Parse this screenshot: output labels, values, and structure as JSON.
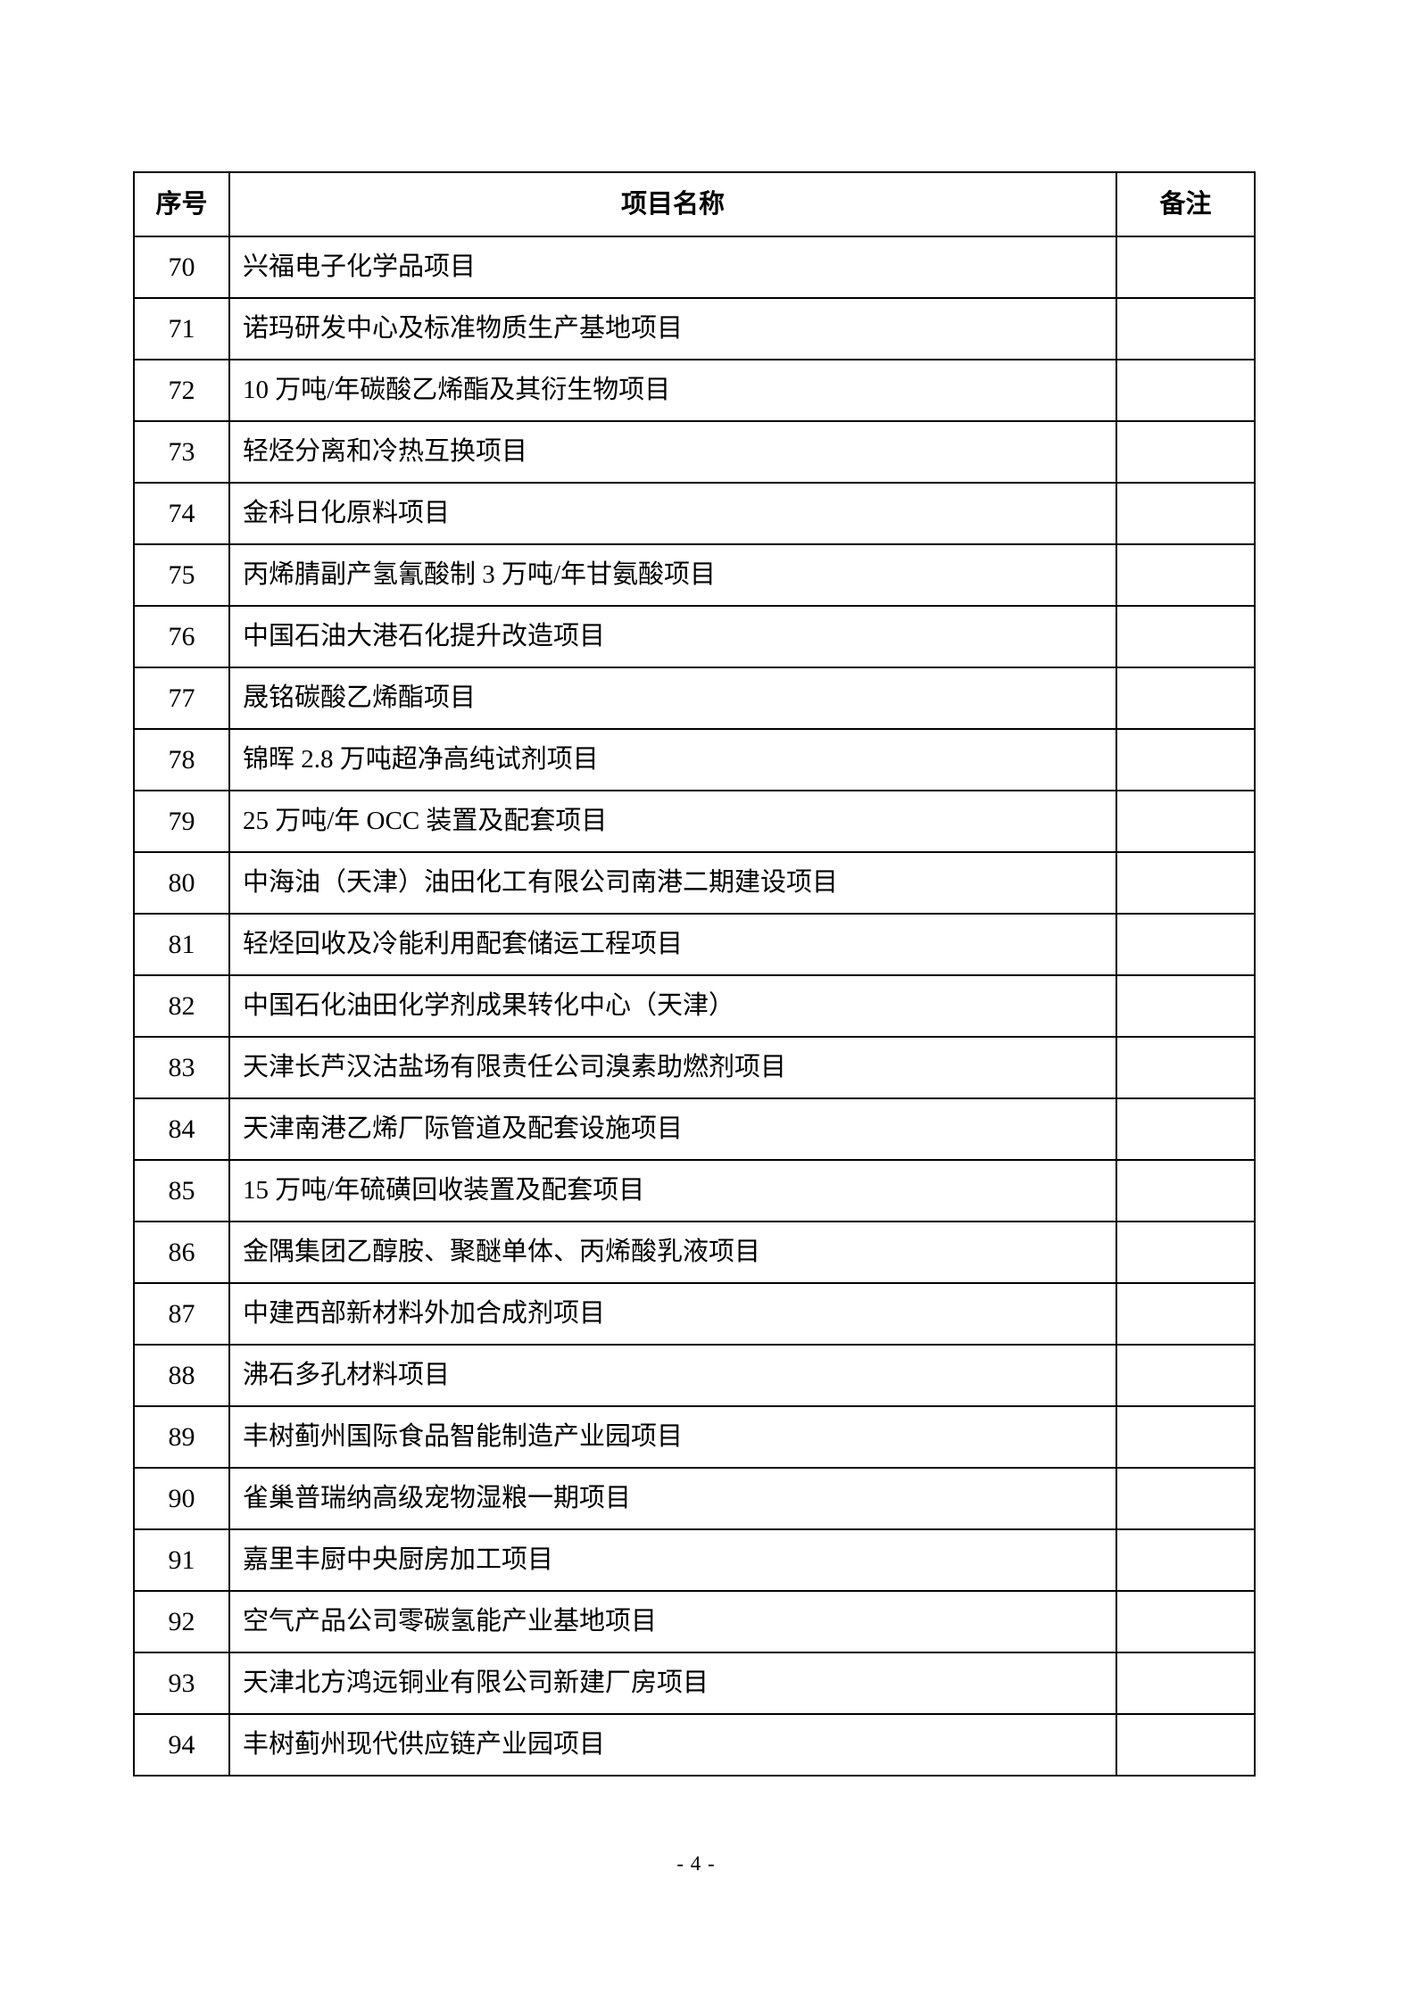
{
  "page": {
    "number_label": "- 4 -"
  },
  "table": {
    "headers": {
      "no": "序号",
      "name": "项目名称",
      "remark": "备注"
    },
    "rows": [
      {
        "no": "70",
        "name": "兴福电子化学品项目",
        "remark": ""
      },
      {
        "no": "71",
        "name": "诺玛研发中心及标准物质生产基地项目",
        "remark": ""
      },
      {
        "no": "72",
        "name": "10 万吨/年碳酸乙烯酯及其衍生物项目",
        "remark": ""
      },
      {
        "no": "73",
        "name": "轻烃分离和冷热互换项目",
        "remark": ""
      },
      {
        "no": "74",
        "name": "金科日化原料项目",
        "remark": ""
      },
      {
        "no": "75",
        "name": "丙烯腈副产氢氰酸制 3 万吨/年甘氨酸项目",
        "remark": ""
      },
      {
        "no": "76",
        "name": "中国石油大港石化提升改造项目",
        "remark": ""
      },
      {
        "no": "77",
        "name": "晟铭碳酸乙烯酯项目",
        "remark": ""
      },
      {
        "no": "78",
        "name": "锦晖 2.8 万吨超净高纯试剂项目",
        "remark": ""
      },
      {
        "no": "79",
        "name": "25 万吨/年 OCC 装置及配套项目",
        "remark": ""
      },
      {
        "no": "80",
        "name": "中海油（天津）油田化工有限公司南港二期建设项目",
        "remark": ""
      },
      {
        "no": "81",
        "name": "轻烃回收及冷能利用配套储运工程项目",
        "remark": ""
      },
      {
        "no": "82",
        "name": "中国石化油田化学剂成果转化中心（天津）",
        "remark": ""
      },
      {
        "no": "83",
        "name": "天津长芦汉沽盐场有限责任公司溴素助燃剂项目",
        "remark": ""
      },
      {
        "no": "84",
        "name": "天津南港乙烯厂际管道及配套设施项目",
        "remark": ""
      },
      {
        "no": "85",
        "name": "15 万吨/年硫磺回收装置及配套项目",
        "remark": ""
      },
      {
        "no": "86",
        "name": "金隅集团乙醇胺、聚醚单体、丙烯酸乳液项目",
        "remark": ""
      },
      {
        "no": "87",
        "name": "中建西部新材料外加合成剂项目",
        "remark": ""
      },
      {
        "no": "88",
        "name": "沸石多孔材料项目",
        "remark": ""
      },
      {
        "no": "89",
        "name": "丰树蓟州国际食品智能制造产业园项目",
        "remark": ""
      },
      {
        "no": "90",
        "name": "雀巢普瑞纳高级宠物湿粮一期项目",
        "remark": ""
      },
      {
        "no": "91",
        "name": "嘉里丰厨中央厨房加工项目",
        "remark": ""
      },
      {
        "no": "92",
        "name": "空气产品公司零碳氢能产业基地项目",
        "remark": ""
      },
      {
        "no": "93",
        "name": "天津北方鸿远铜业有限公司新建厂房项目",
        "remark": ""
      },
      {
        "no": "94",
        "name": "丰树蓟州现代供应链产业园项目",
        "remark": ""
      }
    ]
  }
}
